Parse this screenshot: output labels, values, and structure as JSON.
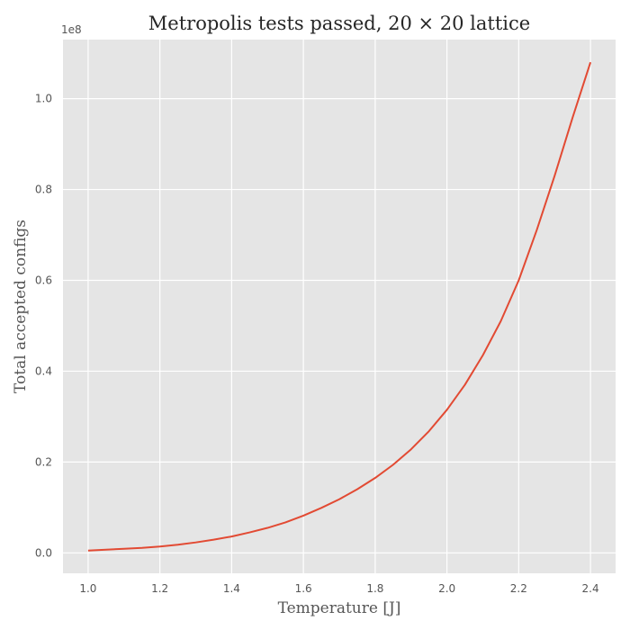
{
  "chart_data": {
    "type": "line",
    "title": "Metropolis tests passed, 20 × 20 lattice",
    "xlabel": "Temperature [J]",
    "ylabel": "Total accepted configs",
    "y_offset_label": "1e8",
    "xlim": [
      0.93,
      2.47
    ],
    "ylim": [
      -0.045,
      1.13
    ],
    "x_ticks": [
      1.0,
      1.2,
      1.4,
      1.6,
      1.8,
      2.0,
      2.2,
      2.4
    ],
    "x_tick_labels": [
      "1.0",
      "1.2",
      "1.4",
      "1.6",
      "1.8",
      "2.0",
      "2.2",
      "2.4"
    ],
    "y_ticks": [
      0.0,
      0.2,
      0.4,
      0.6,
      0.8,
      1.0
    ],
    "y_tick_labels": [
      "0.0",
      "0.2",
      "0.4",
      "0.6",
      "0.8",
      "1.0"
    ],
    "grid": true,
    "colors": {
      "background": "#e5e5e5",
      "grid": "#ffffff",
      "line": "#e24a33"
    },
    "series": [
      {
        "x": [
          1.0,
          1.05,
          1.1,
          1.15,
          1.2,
          1.25,
          1.3,
          1.35,
          1.4,
          1.45,
          1.5,
          1.55,
          1.6,
          1.65,
          1.7,
          1.75,
          1.8,
          1.85,
          1.9,
          1.95,
          2.0,
          2.05,
          2.1,
          2.15,
          2.2,
          2.25,
          2.3,
          2.35,
          2.4
        ],
        "values": [
          0.005,
          0.007,
          0.009,
          0.011,
          0.014,
          0.018,
          0.023,
          0.029,
          0.036,
          0.045,
          0.055,
          0.067,
          0.082,
          0.099,
          0.118,
          0.14,
          0.165,
          0.194,
          0.228,
          0.268,
          0.315,
          0.37,
          0.435,
          0.51,
          0.6,
          0.71,
          0.83,
          0.958,
          1.08
        ]
      }
    ]
  }
}
